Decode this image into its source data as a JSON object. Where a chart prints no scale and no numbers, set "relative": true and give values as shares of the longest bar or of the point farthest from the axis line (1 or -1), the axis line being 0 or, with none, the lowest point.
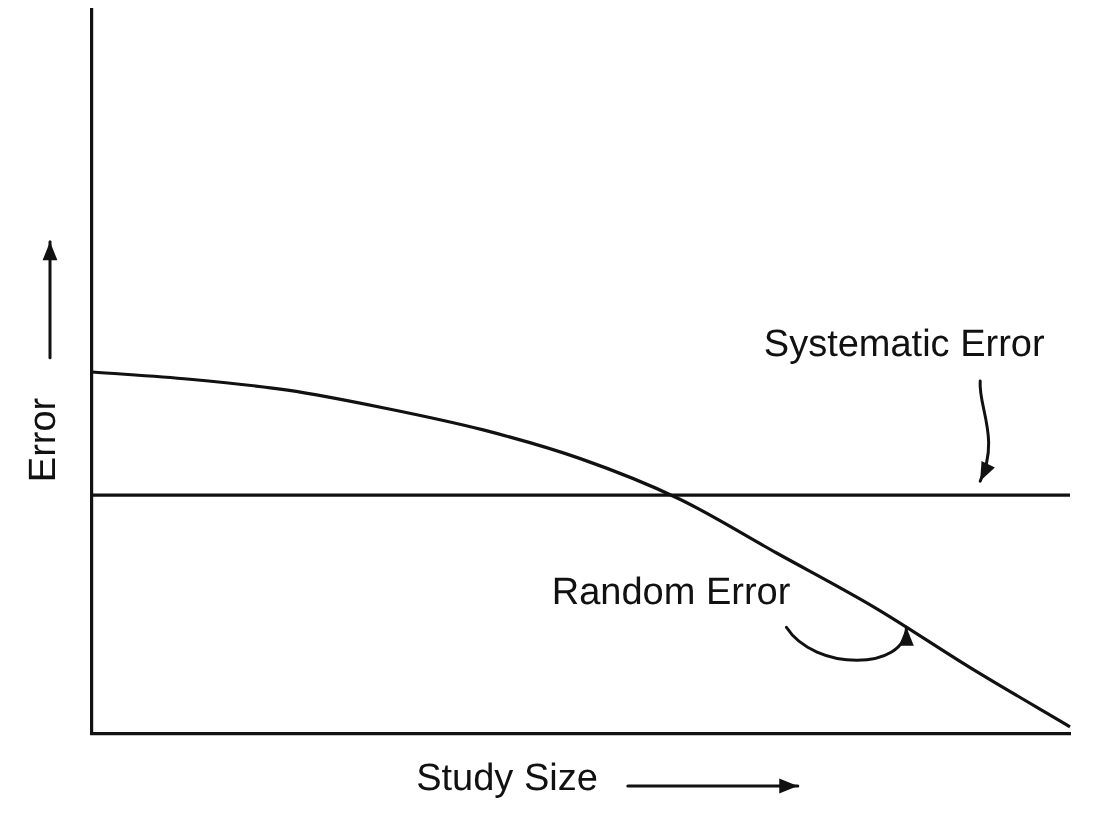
{
  "chart_data": {
    "type": "line",
    "relative": true,
    "xlabel": "Study Size",
    "ylabel": "Error",
    "legend": false,
    "grid": false,
    "marker": "none",
    "categories": [
      null,
      null,
      null,
      null,
      null,
      null,
      null,
      null,
      null,
      null,
      null
    ],
    "series": [
      {
        "name": "Systematic Error",
        "color": "#111111",
        "values": [
          0.66,
          0.66,
          0.66,
          0.66,
          0.66,
          0.66,
          0.66,
          0.66,
          0.66,
          0.66,
          0.66
        ]
      },
      {
        "name": "Random Error",
        "color": "#111111",
        "values": [
          1,
          0.98,
          0.95,
          0.9,
          0.84,
          0.76,
          0.65,
          0.5,
          0.35,
          0.18,
          0.02
        ]
      }
    ]
  }
}
